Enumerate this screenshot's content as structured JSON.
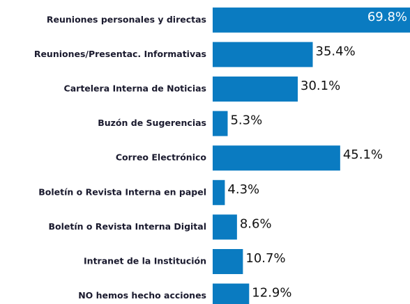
{
  "chart_data": {
    "type": "bar",
    "orientation": "horizontal",
    "categories": [
      "Reuniones personales y directas",
      "Reuniones/Presentac. Informativas",
      "Cartelera Interna de Noticias",
      "Buzón de Sugerencias",
      "Correo Electrónico",
      "Boletín o Revista Interna en papel",
      "Boletín o Revista Interna Digital",
      "Intranet de la Institución",
      "NO hemos hecho acciones"
    ],
    "values": [
      69.8,
      35.4,
      30.1,
      5.3,
      45.1,
      4.3,
      8.6,
      10.7,
      12.9
    ],
    "value_labels": [
      "69.8%",
      "35.4%",
      "30.1%",
      "5.3%",
      "45.1%",
      "4.3%",
      "8.6%",
      "10.7%",
      "12.9%"
    ],
    "color": "#0a7bc1"
  }
}
